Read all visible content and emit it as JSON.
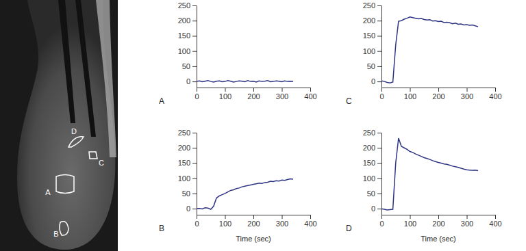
{
  "image": {
    "roi_labels": [
      "A",
      "B",
      "C",
      "D"
    ]
  },
  "chart_data": [
    {
      "type": "line",
      "title": "A",
      "color": "#2f3585",
      "x": [
        0,
        10,
        20,
        30,
        40,
        50,
        60,
        70,
        80,
        90,
        100,
        110,
        120,
        130,
        140,
        150,
        160,
        170,
        180,
        190,
        200,
        210,
        220,
        230,
        240,
        250,
        260,
        270,
        280,
        290,
        300,
        310,
        320,
        330,
        340
      ],
      "values": [
        0,
        2,
        -1,
        1,
        3,
        0,
        -2,
        1,
        2,
        -1,
        0,
        3,
        1,
        -2,
        0,
        2,
        1,
        -1,
        3,
        0,
        1,
        -2,
        2,
        0,
        1,
        3,
        -1,
        0,
        2,
        1,
        -1,
        2,
        0,
        1,
        0
      ],
      "xlim": [
        0,
        400
      ],
      "xticks": [
        0,
        100,
        200,
        300,
        400
      ],
      "ylim": [
        -20,
        250
      ],
      "yticks": [
        0,
        50,
        100,
        150,
        200,
        250
      ]
    },
    {
      "type": "line",
      "title": "B",
      "x_label": "Time (sec)",
      "color": "#2f3585",
      "x": [
        0,
        10,
        20,
        30,
        40,
        50,
        60,
        70,
        80,
        90,
        100,
        110,
        120,
        130,
        140,
        150,
        160,
        170,
        180,
        190,
        200,
        210,
        220,
        230,
        240,
        250,
        260,
        270,
        280,
        290,
        300,
        310,
        320,
        330,
        340
      ],
      "values": [
        0,
        1,
        -1,
        3,
        2,
        -2,
        8,
        35,
        42,
        46,
        50,
        55,
        60,
        62,
        66,
        68,
        72,
        74,
        76,
        78,
        80,
        82,
        84,
        83,
        86,
        87,
        90,
        89,
        92,
        91,
        94,
        93,
        96,
        98,
        97
      ],
      "xlim": [
        0,
        400
      ],
      "xticks": [
        0,
        100,
        200,
        300,
        400
      ],
      "ylim": [
        -20,
        250
      ],
      "yticks": [
        0,
        50,
        100,
        150,
        200,
        250
      ]
    },
    {
      "type": "line",
      "title": "C",
      "color": "#2f3585",
      "x": [
        0,
        10,
        20,
        30,
        40,
        50,
        60,
        70,
        80,
        90,
        100,
        110,
        120,
        130,
        140,
        150,
        160,
        170,
        180,
        190,
        200,
        210,
        220,
        230,
        240,
        250,
        260,
        270,
        280,
        290,
        300,
        310,
        320,
        330,
        340
      ],
      "values": [
        2,
        0,
        -3,
        -5,
        -2,
        120,
        198,
        200,
        205,
        208,
        212,
        210,
        208,
        206,
        207,
        204,
        202,
        203,
        199,
        200,
        197,
        198,
        194,
        195,
        193,
        190,
        192,
        188,
        189,
        186,
        187,
        185,
        186,
        183,
        180
      ],
      "xlim": [
        0,
        400
      ],
      "xticks": [
        0,
        100,
        200,
        300,
        400
      ],
      "ylim": [
        -20,
        250
      ],
      "yticks": [
        0,
        50,
        100,
        150,
        200,
        250
      ]
    },
    {
      "type": "line",
      "title": "D",
      "x_label": "Time (sec)",
      "color": "#2f3585",
      "x": [
        0,
        10,
        20,
        30,
        40,
        50,
        60,
        70,
        80,
        90,
        100,
        110,
        120,
        130,
        140,
        150,
        160,
        170,
        180,
        190,
        200,
        210,
        220,
        230,
        240,
        250,
        260,
        270,
        280,
        290,
        300,
        310,
        320,
        330,
        340
      ],
      "values": [
        0,
        -2,
        -4,
        -3,
        -2,
        150,
        232,
        205,
        200,
        195,
        188,
        185,
        180,
        176,
        172,
        168,
        165,
        162,
        158,
        155,
        152,
        150,
        147,
        146,
        143,
        140,
        138,
        136,
        133,
        130,
        128,
        127,
        126,
        127,
        125
      ],
      "xlim": [
        0,
        400
      ],
      "xticks": [
        0,
        100,
        200,
        300,
        400
      ],
      "ylim": [
        -20,
        250
      ],
      "yticks": [
        0,
        50,
        100,
        150,
        200,
        250
      ]
    }
  ]
}
